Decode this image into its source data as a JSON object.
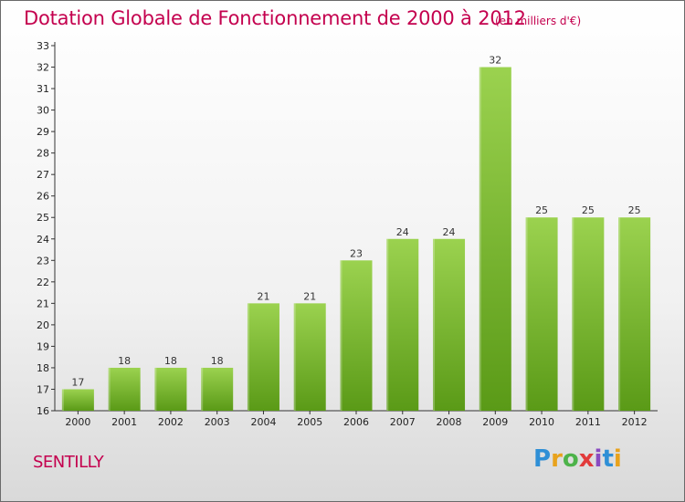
{
  "title": "Dotation Globale de Fonctionnement de 2000 à 2012",
  "subtitle": "(en milliers d'€)",
  "place": "SENTILLY",
  "logo": {
    "letters": [
      "P",
      "r",
      "o",
      "x",
      "i",
      "t",
      "i"
    ],
    "colors": [
      "#2f8fd6",
      "#e8a21c",
      "#4db34a",
      "#e23b3b",
      "#8a4bc1",
      "#2f8fd6",
      "#e8a21c"
    ]
  },
  "colors": {
    "bar_top": "#9bd24f",
    "bar_bottom": "#5a9a17",
    "title": "#c4004e"
  },
  "chart_data": {
    "type": "bar",
    "categories": [
      "2000",
      "2001",
      "2002",
      "2003",
      "2004",
      "2005",
      "2006",
      "2007",
      "2008",
      "2009",
      "2010",
      "2011",
      "2012"
    ],
    "values": [
      17,
      18,
      18,
      18,
      21,
      21,
      23,
      24,
      24,
      32,
      25,
      25,
      25
    ],
    "ylim": [
      16,
      33
    ],
    "yticks": [
      16,
      17,
      18,
      19,
      20,
      21,
      22,
      23,
      24,
      25,
      26,
      27,
      28,
      29,
      30,
      31,
      32,
      33
    ],
    "grid": false,
    "xlabel": "",
    "ylabel": ""
  }
}
